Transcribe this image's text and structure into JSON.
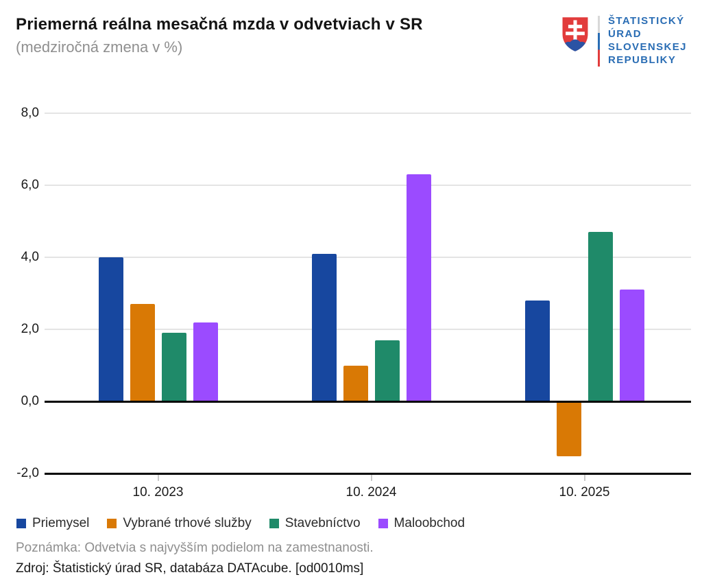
{
  "header": {
    "title": "Priemerná reálna mesačná mzda v odvetviach v SR",
    "subtitle": "(medziročná zmena v %)",
    "logo": {
      "lines": [
        "ŠTATISTICKÝ",
        "ÚRAD",
        "SLOVENSKEJ",
        "REPUBLIKY"
      ],
      "text_color": "#2a6db4",
      "shield_red": "#e23c3c",
      "shield_blue": "#2b53a4"
    }
  },
  "chart_data": {
    "type": "bar",
    "title": "Priemerná reálna mesačná mzda v odvetviach v SR",
    "subtitle": "(medziročná zmena v %)",
    "categories": [
      "10. 2023",
      "10. 2024",
      "10. 2025"
    ],
    "series": [
      {
        "name": "Priemysel",
        "color": "#17479f",
        "values": [
          4.0,
          4.1,
          2.8
        ]
      },
      {
        "name": "Vybrané trhové služby",
        "color": "#d97905",
        "values": [
          2.7,
          1.0,
          -1.5
        ]
      },
      {
        "name": "Stavebníctvo",
        "color": "#1f8a69",
        "values": [
          1.9,
          1.7,
          4.7
        ]
      },
      {
        "name": "Maloobchod",
        "color": "#9b4bff",
        "values": [
          2.2,
          6.3,
          3.1
        ]
      }
    ],
    "xlabel": "",
    "ylabel": "",
    "ylim": [
      -2.0,
      8.0
    ],
    "ytick_step": 2.0,
    "ytick_labels": [
      "8,0",
      "6,0",
      "4,0",
      "2,0",
      "0,0",
      "-2,0"
    ],
    "grid": true,
    "zero_line": true,
    "legend_position": "bottom"
  },
  "footer": {
    "note": "Poznámka: Odvetvia s najvyšším podielom na zamestnanosti.",
    "source": "Zdroj: Štatistický úrad SR, databáza DATAcube. [od0010ms]"
  }
}
